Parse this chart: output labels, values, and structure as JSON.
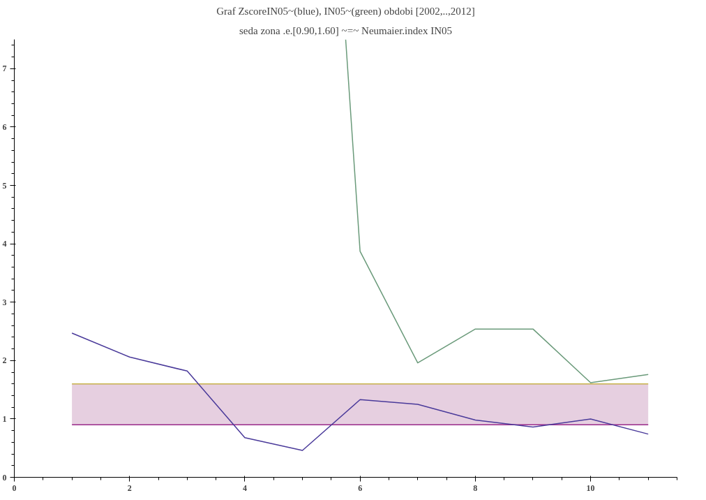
{
  "chart_data": {
    "type": "line",
    "title": "Graf ZscoreIN05~(blue), IN05~(green) obdobi [2002,..,2012]",
    "subtitle": "seda zona .e.[0.90,1.60] ~=~ Neumaier.index IN05",
    "x": [
      1,
      2,
      3,
      4,
      5,
      6,
      7,
      8,
      9,
      10,
      11
    ],
    "series": [
      {
        "color": "#4a3a9a",
        "values": [
          2.47,
          2.06,
          1.82,
          0.68,
          0.46,
          1.33,
          1.25,
          0.98,
          0.86,
          1.0,
          0.74
        ]
      },
      {
        "color": "#6a9a7a",
        "x": [
          5.75,
          6,
          7,
          8,
          9,
          10,
          11
        ],
        "values": [
          7.5,
          3.87,
          1.96,
          2.54,
          2.54,
          1.62,
          1.76
        ]
      }
    ],
    "bands": [
      {
        "axis": "y",
        "from": 0.9,
        "to": 1.6,
        "color": "#e6cfe0"
      }
    ],
    "ref_lines": [
      {
        "axis": "y",
        "value": 1.6,
        "color": "#c8b24a"
      },
      {
        "axis": "y",
        "value": 0.9,
        "color": "#9a2a8a"
      }
    ],
    "xlim": [
      0,
      11.5
    ],
    "ylim": [
      0,
      7.5
    ],
    "xticks": [
      0,
      2,
      4,
      6,
      8,
      10
    ],
    "yticks": [
      0,
      1,
      2,
      3,
      4,
      5,
      6,
      7
    ],
    "grid": false,
    "marker": "none",
    "line_style": "solid"
  }
}
